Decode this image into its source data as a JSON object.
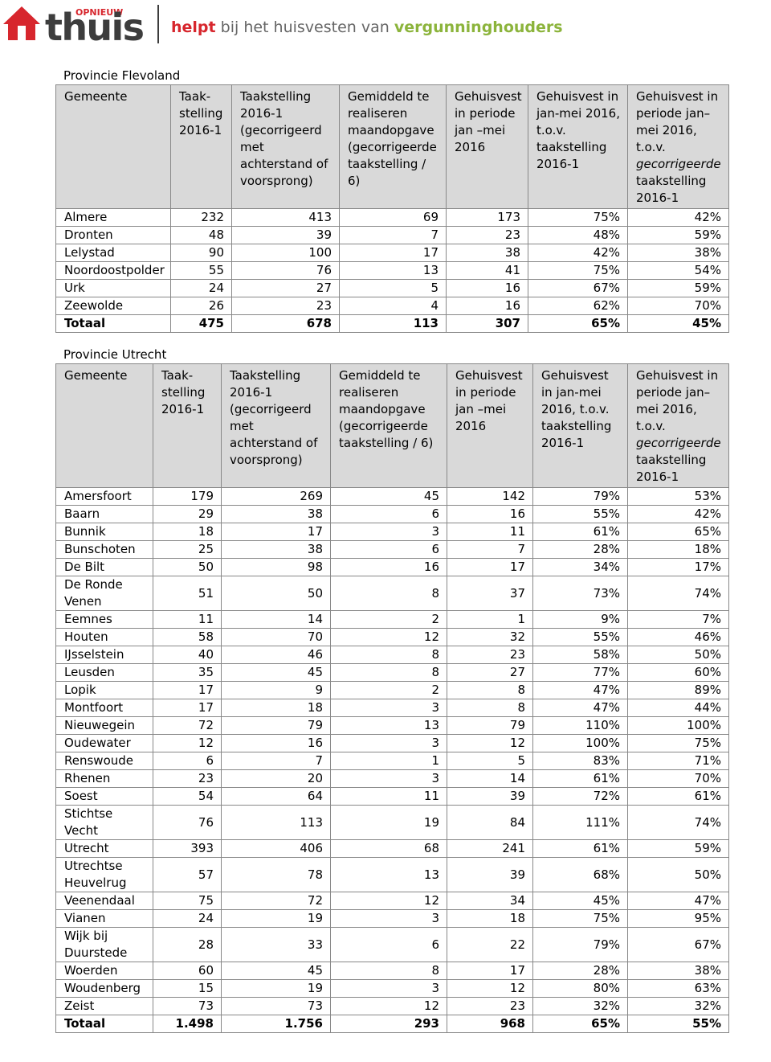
{
  "header": {
    "logo_small": "OPNIEUW",
    "logo": "thuis",
    "tagline": [
      "helpt",
      "bij het huisvesten van",
      "vergunninghouders"
    ]
  },
  "tables": [
    {
      "title": "Provincie Flevoland",
      "columns": [
        "Gemeente",
        "Taak-stelling 2016-1",
        "Taakstelling 2016-1 (gecorrigeerd met achterstand of voorsprong)",
        "Gemiddeld te realiseren maandopgave (gecorrigeerde taakstelling / 6)",
        "Gehuisvest in periode jan –mei 2016",
        "Gehuisvest in jan-mei 2016, t.o.v. taakstelling 2016-1",
        [
          "Gehuisvest in periode jan–mei 2016, t.o.v.",
          "gecorrigeerde",
          "taakstelling 2016-1"
        ]
      ],
      "rows": [
        [
          "Almere",
          "232",
          "413",
          "69",
          "173",
          "75%",
          "42%"
        ],
        [
          "Dronten",
          "48",
          "39",
          "7",
          "23",
          "48%",
          "59%"
        ],
        [
          "Lelystad",
          "90",
          "100",
          "17",
          "38",
          "42%",
          "38%"
        ],
        [
          "Noordoostpolder",
          "55",
          "76",
          "13",
          "41",
          "75%",
          "54%"
        ],
        [
          "Urk",
          "24",
          "27",
          "5",
          "16",
          "67%",
          "59%"
        ],
        [
          "Zeewolde",
          "26",
          "23",
          "4",
          "16",
          "62%",
          "70%"
        ]
      ],
      "total": [
        "Totaal",
        "475",
        "678",
        "113",
        "307",
        "65%",
        "45%"
      ]
    },
    {
      "title": "Provincie Utrecht",
      "columns": [
        "Gemeente",
        "Taak-stelling 2016-1",
        "Taakstelling 2016-1 (gecorrigeerd met achterstand of voorsprong)",
        "Gemiddeld te realiseren maandopgave (gecorrigeerde taakstelling / 6)",
        "Gehuisvest in periode jan –mei 2016",
        "Gehuisvest in jan-mei 2016, t.o.v. taakstelling 2016-1",
        [
          "Gehuisvest in periode jan–mei 2016, t.o.v.",
          "gecorrigeerde",
          "taakstelling 2016-1"
        ]
      ],
      "rows": [
        [
          "Amersfoort",
          "179",
          "269",
          "45",
          "142",
          "79%",
          "53%"
        ],
        [
          "Baarn",
          "29",
          "38",
          "6",
          "16",
          "55%",
          "42%"
        ],
        [
          "Bunnik",
          "18",
          "17",
          "3",
          "11",
          "61%",
          "65%"
        ],
        [
          "Bunschoten",
          "25",
          "38",
          "6",
          "7",
          "28%",
          "18%"
        ],
        [
          "De Bilt",
          "50",
          "98",
          "16",
          "17",
          "34%",
          "17%"
        ],
        [
          "De Ronde Venen",
          "51",
          "50",
          "8",
          "37",
          "73%",
          "74%"
        ],
        [
          "Eemnes",
          "11",
          "14",
          "2",
          "1",
          "9%",
          "7%"
        ],
        [
          "Houten",
          "58",
          "70",
          "12",
          "32",
          "55%",
          "46%"
        ],
        [
          "IJsselstein",
          "40",
          "46",
          "8",
          "23",
          "58%",
          "50%"
        ],
        [
          "Leusden",
          "35",
          "45",
          "8",
          "27",
          "77%",
          "60%"
        ],
        [
          "Lopik",
          "17",
          "9",
          "2",
          "8",
          "47%",
          "89%"
        ],
        [
          "Montfoort",
          "17",
          "18",
          "3",
          "8",
          "47%",
          "44%"
        ],
        [
          "Nieuwegein",
          "72",
          "79",
          "13",
          "79",
          "110%",
          "100%"
        ],
        [
          "Oudewater",
          "12",
          "16",
          "3",
          "12",
          "100%",
          "75%"
        ],
        [
          "Renswoude",
          "6",
          "7",
          "1",
          "5",
          "83%",
          "71%"
        ],
        [
          "Rhenen",
          "23",
          "20",
          "3",
          "14",
          "61%",
          "70%"
        ],
        [
          "Soest",
          "54",
          "64",
          "11",
          "39",
          "72%",
          "61%"
        ],
        [
          "Stichtse Vecht",
          "76",
          "113",
          "19",
          "84",
          "111%",
          "74%"
        ],
        [
          "Utrecht",
          "393",
          "406",
          "68",
          "241",
          "61%",
          "59%"
        ],
        [
          "Utrechtse Heuvelrug",
          "57",
          "78",
          "13",
          "39",
          "68%",
          "50%"
        ],
        [
          "Veenendaal",
          "75",
          "72",
          "12",
          "34",
          "45%",
          "47%"
        ],
        [
          "Vianen",
          "24",
          "19",
          "3",
          "18",
          "75%",
          "95%"
        ],
        [
          "Wijk bij Duurstede",
          "28",
          "33",
          "6",
          "22",
          "79%",
          "67%"
        ],
        [
          "Woerden",
          "60",
          "45",
          "8",
          "17",
          "28%",
          "38%"
        ],
        [
          "Woudenberg",
          "15",
          "19",
          "3",
          "12",
          "80%",
          "63%"
        ],
        [
          "Zeist",
          "73",
          "73",
          "12",
          "23",
          "32%",
          "32%"
        ]
      ],
      "total": [
        "Totaal",
        "1.498",
        "1.756",
        "293",
        "968",
        "65%",
        "55%"
      ]
    }
  ]
}
